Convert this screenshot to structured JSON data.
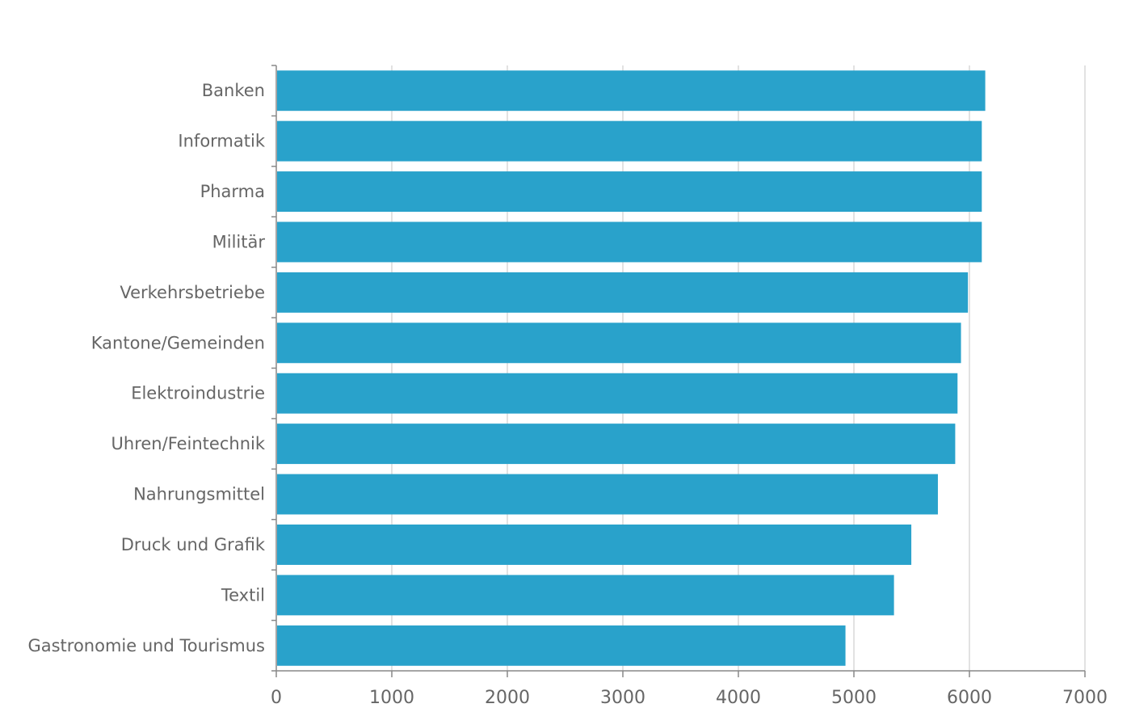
{
  "chart_data": {
    "type": "bar",
    "orientation": "horizontal",
    "categories": [
      "Banken",
      "Informatik",
      "Pharma",
      "Militär",
      "Verkehrsbetriebe",
      "Kantone/Gemeinden",
      "Elektroindustrie",
      "Uhren/Feintechnik",
      "Nahrungsmittel",
      "Druck und Grafik",
      "Textil",
      "Gastronomie und Tourismus"
    ],
    "values": [
      6130,
      6100,
      6100,
      6100,
      5980,
      5920,
      5890,
      5870,
      5720,
      5490,
      5340,
      4920
    ],
    "xlim": [
      0,
      7000
    ],
    "xticks": [
      "0",
      "1000",
      "2000",
      "3000",
      "4000",
      "5000",
      "6000",
      "7000"
    ],
    "title": "",
    "xlabel": "",
    "ylabel": "",
    "grid": "vertical",
    "legend": "none",
    "bar_color": "#29a2cb"
  }
}
